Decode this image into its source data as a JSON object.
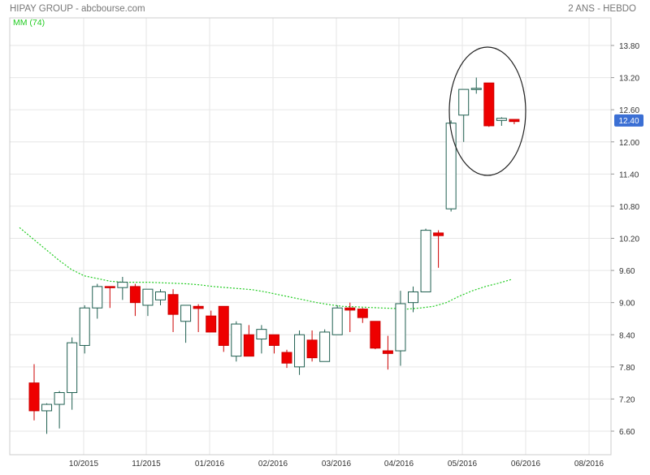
{
  "header": {
    "title": "HIPAY GROUP - abcbourse.com",
    "period": "2 ANS - HEBDO",
    "indicator": "MM (74)"
  },
  "colors": {
    "up_fill": "#ffffff",
    "up_border": "#1f5f50",
    "down_fill": "#ee0000",
    "down_border": "#cc0000",
    "ma": "#22cc22",
    "grid": "#e6e6e6",
    "axis_text": "#333333",
    "last_price_bg": "#3b6fd4"
  },
  "chart_data": {
    "type": "candlestick",
    "title": "HIPAY GROUP - abcbourse.com",
    "period_label": "2 ANS - HEBDO",
    "ylim": [
      6.3,
      14.1
    ],
    "yticks": [
      6.6,
      7.2,
      7.8,
      8.4,
      9.0,
      9.6,
      10.2,
      10.8,
      11.4,
      12.0,
      12.6,
      13.2,
      13.8
    ],
    "ytick_labels": [
      "6.60",
      "7.20",
      "7.80",
      "8.40",
      "9.00",
      "9.60",
      "10.20",
      "10.80",
      "11.40",
      "12.00",
      "12.60",
      "13.20",
      "13.80"
    ],
    "xlabels": [
      "10/2015",
      "11/2015",
      "01/2016",
      "02/2016",
      "03/2016",
      "04/2016",
      "05/2016",
      "06/2016",
      "08/2016"
    ],
    "last_price": "12.40",
    "last_price_value": 12.4,
    "moving_average": {
      "name": "MM (74)",
      "values": [
        10.4,
        10.2,
        10.0,
        9.8,
        9.62,
        9.5,
        9.45,
        9.4,
        9.38,
        9.38,
        9.38,
        9.37,
        9.36,
        9.35,
        9.33,
        9.3,
        9.28,
        9.26,
        9.24,
        9.2,
        9.15,
        9.1,
        9.05,
        9.0,
        8.96,
        8.93,
        8.92,
        8.91,
        8.9,
        8.89,
        8.88,
        8.9,
        8.93,
        9.0,
        9.12,
        9.22,
        9.3,
        9.36,
        9.43
      ]
    },
    "candles": [
      {
        "open": 7.5,
        "high": 7.85,
        "low": 6.8,
        "close": 6.98
      },
      {
        "open": 6.98,
        "high": 7.12,
        "low": 6.55,
        "close": 7.1
      },
      {
        "open": 7.1,
        "high": 7.35,
        "low": 6.65,
        "close": 7.32
      },
      {
        "open": 7.32,
        "high": 8.35,
        "low": 7.0,
        "close": 8.25
      },
      {
        "open": 8.2,
        "high": 8.95,
        "low": 8.05,
        "close": 8.9
      },
      {
        "open": 8.9,
        "high": 9.35,
        "low": 8.7,
        "close": 9.3
      },
      {
        "open": 9.3,
        "high": 9.3,
        "low": 8.9,
        "close": 9.28
      },
      {
        "open": 9.28,
        "high": 9.48,
        "low": 9.05,
        "close": 9.38
      },
      {
        "open": 9.3,
        "high": 9.35,
        "low": 8.75,
        "close": 9.0
      },
      {
        "open": 8.95,
        "high": 9.25,
        "low": 8.75,
        "close": 9.25
      },
      {
        "open": 9.05,
        "high": 9.25,
        "low": 8.95,
        "close": 9.2
      },
      {
        "open": 9.15,
        "high": 9.25,
        "low": 8.45,
        "close": 8.78
      },
      {
        "open": 8.65,
        "high": 8.95,
        "low": 8.25,
        "close": 8.95
      },
      {
        "open": 8.93,
        "high": 8.97,
        "low": 8.45,
        "close": 8.89
      },
      {
        "open": 8.75,
        "high": 8.85,
        "low": 8.45,
        "close": 8.45
      },
      {
        "open": 8.93,
        "high": 8.93,
        "low": 8.08,
        "close": 8.2
      },
      {
        "open": 8.0,
        "high": 8.65,
        "low": 7.9,
        "close": 8.6
      },
      {
        "open": 8.4,
        "high": 8.58,
        "low": 8.0,
        "close": 8.0
      },
      {
        "open": 8.32,
        "high": 8.58,
        "low": 8.05,
        "close": 8.5
      },
      {
        "open": 8.4,
        "high": 8.4,
        "low": 8.05,
        "close": 8.2
      },
      {
        "open": 8.07,
        "high": 8.12,
        "low": 7.78,
        "close": 7.87
      },
      {
        "open": 7.8,
        "high": 8.48,
        "low": 7.65,
        "close": 8.4
      },
      {
        "open": 8.3,
        "high": 8.48,
        "low": 7.9,
        "close": 7.97
      },
      {
        "open": 7.9,
        "high": 8.5,
        "low": 7.9,
        "close": 8.45
      },
      {
        "open": 8.4,
        "high": 8.95,
        "low": 8.4,
        "close": 8.9
      },
      {
        "open": 8.9,
        "high": 9.0,
        "low": 8.45,
        "close": 8.86
      },
      {
        "open": 8.88,
        "high": 8.9,
        "low": 8.62,
        "close": 8.72
      },
      {
        "open": 8.65,
        "high": 8.65,
        "low": 8.13,
        "close": 8.15
      },
      {
        "open": 8.1,
        "high": 8.38,
        "low": 7.75,
        "close": 8.05
      },
      {
        "open": 8.1,
        "high": 9.22,
        "low": 7.82,
        "close": 8.98
      },
      {
        "open": 9.0,
        "high": 9.3,
        "low": 8.82,
        "close": 9.2
      },
      {
        "open": 9.2,
        "high": 10.38,
        "low": 9.2,
        "close": 10.35
      },
      {
        "open": 10.3,
        "high": 10.35,
        "low": 9.65,
        "close": 10.25
      },
      {
        "open": 10.75,
        "high": 12.4,
        "low": 10.7,
        "close": 12.35
      },
      {
        "open": 12.5,
        "high": 12.98,
        "low": 12.0,
        "close": 12.98
      },
      {
        "open": 12.98,
        "high": 13.2,
        "low": 12.9,
        "close": 13.0
      },
      {
        "open": 13.1,
        "high": 13.1,
        "low": 12.28,
        "close": 12.3
      },
      {
        "open": 12.4,
        "high": 12.46,
        "low": 12.3,
        "close": 12.44
      },
      {
        "open": 12.42,
        "high": 12.42,
        "low": 12.33,
        "close": 12.38
      }
    ],
    "grid": true,
    "annotation": "ellipse around last five weekly candles"
  }
}
